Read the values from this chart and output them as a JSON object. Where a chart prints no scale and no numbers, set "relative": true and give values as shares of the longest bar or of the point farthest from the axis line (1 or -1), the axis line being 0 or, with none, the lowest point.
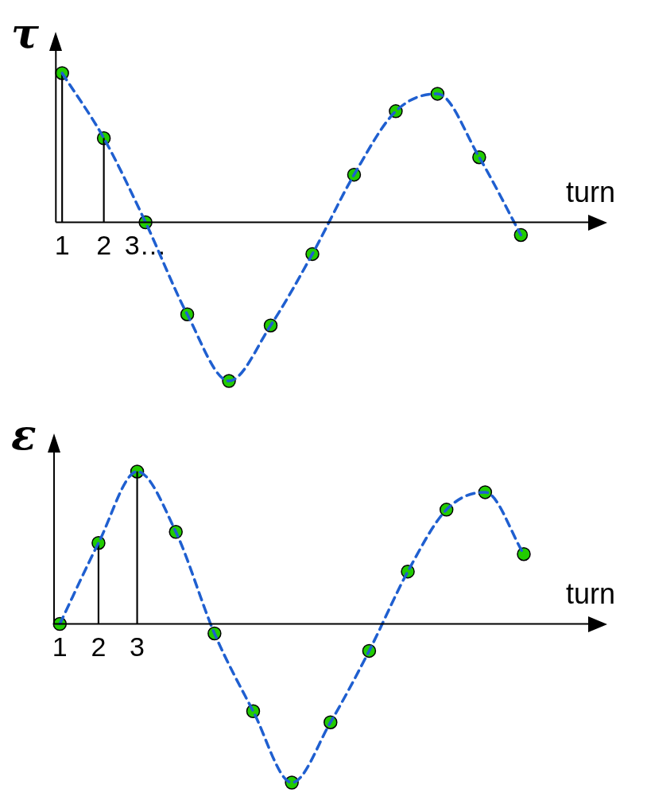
{
  "chart_data": [
    {
      "type": "scatter",
      "ylabel": "τ",
      "xlabel": "turn",
      "categories": [
        "1",
        "2",
        "3…",
        null,
        null,
        null,
        null,
        null,
        null,
        null,
        null,
        null
      ],
      "relative": true,
      "series": [
        {
          "type": "line",
          "color": "#1f5fd0",
          "line_style": "dashed",
          "marker": "none",
          "values": [
            0.94,
            0.53,
            0,
            -0.58,
            -1,
            -0.65,
            -0.2,
            0.3,
            0.7,
            0.81,
            0.41,
            -0.08
          ]
        },
        {
          "type": "bar",
          "color": "#000000",
          "values": [
            0.94,
            0.53,
            null,
            null,
            null,
            null,
            null,
            null,
            null,
            null,
            null,
            null
          ]
        },
        {
          "type": "scatter",
          "color": "#22cc00",
          "marker": "circle",
          "values": [
            0.94,
            0.53,
            0,
            -0.58,
            -1,
            -0.65,
            -0.2,
            0.3,
            0.7,
            0.81,
            0.41,
            -0.08
          ]
        }
      ]
    },
    {
      "type": "scatter",
      "ylabel": "ε",
      "xlabel": "turn",
      "categories": [
        "1",
        "2",
        "3",
        null,
        null,
        null,
        null,
        null,
        null,
        null,
        null,
        null,
        null
      ],
      "relative": true,
      "series": [
        {
          "type": "line",
          "color": "#1f5fd0",
          "line_style": "dashed",
          "marker": "none",
          "values": [
            0,
            0.51,
            0.96,
            0.58,
            -0.06,
            -0.55,
            -1,
            -0.62,
            -0.17,
            0.33,
            0.72,
            0.83,
            0.44
          ]
        },
        {
          "type": "bar",
          "color": "#000000",
          "values": [
            null,
            0.51,
            0.96,
            null,
            null,
            null,
            null,
            null,
            null,
            null,
            null,
            null,
            null
          ]
        },
        {
          "type": "scatter",
          "color": "#22cc00",
          "marker": "circle",
          "values": [
            0,
            0.51,
            0.96,
            0.58,
            -0.06,
            -0.55,
            -1,
            -0.62,
            -0.17,
            0.33,
            0.72,
            0.83,
            0.44
          ]
        }
      ]
    }
  ]
}
